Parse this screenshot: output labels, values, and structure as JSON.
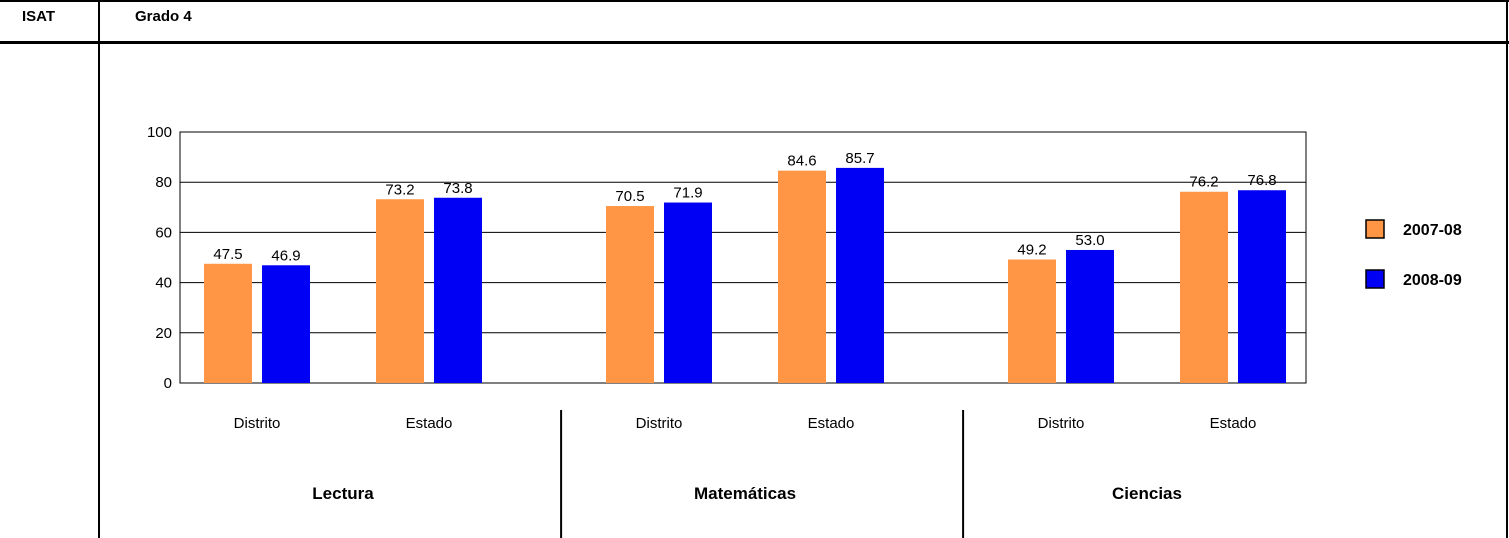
{
  "header": {
    "test_label": "ISAT",
    "grade_label": "Grado 4"
  },
  "colors": {
    "series1": "#FF9645",
    "series2": "#0000F5",
    "grid": "#000000"
  },
  "chart_data": {
    "type": "bar",
    "title": "",
    "ylim": [
      0,
      100
    ],
    "yticks": [
      0,
      20,
      40,
      60,
      80,
      100
    ],
    "grid": true,
    "legend_position": "right",
    "groups": [
      {
        "name": "Lectura",
        "categories": [
          "Distrito",
          "Estado"
        ]
      },
      {
        "name": "Matemáticas",
        "categories": [
          "Distrito",
          "Estado"
        ]
      },
      {
        "name": "Ciencias",
        "categories": [
          "Distrito",
          "Estado"
        ]
      }
    ],
    "categories": [
      "Distrito",
      "Estado",
      "Distrito",
      "Estado",
      "Distrito",
      "Estado"
    ],
    "series": [
      {
        "name": "2007-08",
        "values": [
          47.5,
          73.2,
          70.5,
          84.6,
          49.2,
          76.2
        ]
      },
      {
        "name": "2008-09",
        "values": [
          46.9,
          73.8,
          71.9,
          85.7,
          53.0,
          76.8
        ]
      }
    ]
  }
}
